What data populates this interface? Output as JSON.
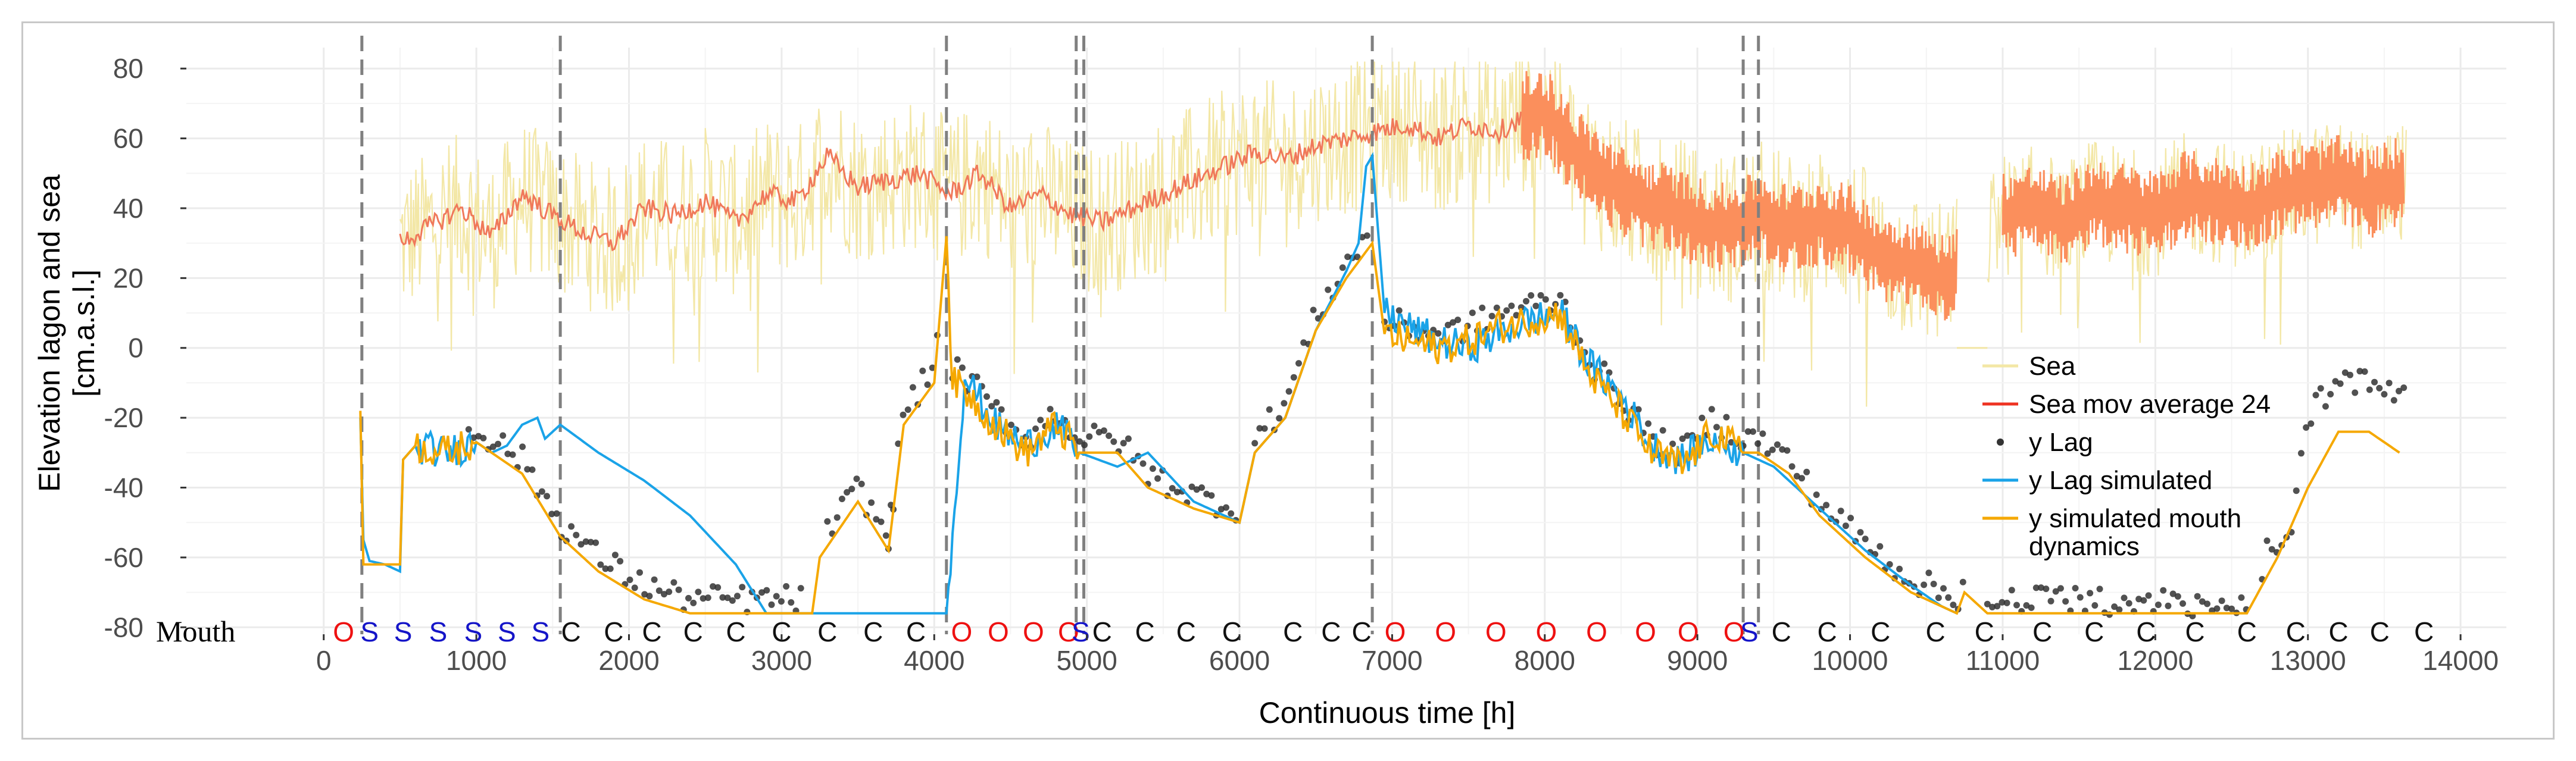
{
  "chart_data": {
    "type": "line",
    "title": "",
    "xlabel": "Continuous time [h]",
    "ylabel": "Elevation lagon and sea",
    "ylabel_units": "[cm.a.s.l.]",
    "xlim": [
      -900,
      14300
    ],
    "ylim": [
      -82,
      86
    ],
    "xticks": [
      0,
      1000,
      2000,
      3000,
      4000,
      5000,
      6000,
      7000,
      8000,
      9000,
      10000,
      11000,
      12000,
      13000,
      14000
    ],
    "yticks": [
      -80,
      -60,
      -40,
      -20,
      0,
      20,
      40,
      60,
      80
    ],
    "grid": true,
    "legend_position": "right",
    "colors": {
      "sea": "#f3e7a6",
      "sea_mov_avg": "#f0795a",
      "sea_mov_avg_dense": "#fb8f5c",
      "y_lag": "#333333",
      "y_lag_sim": "#1aa3e8",
      "y_sim_mouth": "#f5a800",
      "mouth_S": "#1515c8",
      "mouth_O": "#ee1111",
      "mouth_C": "#111111",
      "vline": "#808080"
    },
    "legend": [
      {
        "label": "Sea",
        "kind": "line",
        "color": "#f3e7a6"
      },
      {
        "label": "Sea mov average 24",
        "kind": "line",
        "color": "#ee3322"
      },
      {
        "label": "y Lag",
        "kind": "point",
        "color": "#333333"
      },
      {
        "label": "y Lag simulated",
        "kind": "line",
        "color": "#1aa3e8"
      },
      {
        "label": "y simulated mouth",
        "label2": " dynamics",
        "kind": "line",
        "color": "#f5a800"
      }
    ],
    "vlines": [
      250,
      1550,
      4080,
      4930,
      4980,
      6870,
      9300,
      9400
    ],
    "sea_mov_avg": {
      "x": [
        500,
        700,
        900,
        1100,
        1300,
        1500,
        1700,
        1900,
        2100,
        2300,
        2500,
        2700,
        2900,
        3100,
        3300,
        3500,
        3700,
        3900,
        4100,
        4300,
        4500,
        4700,
        4900,
        5100,
        5300,
        5500,
        5700,
        5900,
        6100,
        6300,
        6500,
        6700,
        6900,
        7100,
        7300,
        7500,
        7700,
        7850
      ],
      "y": [
        30,
        35,
        40,
        32,
        44,
        38,
        33,
        30,
        40,
        38,
        42,
        36,
        44,
        42,
        55,
        46,
        48,
        50,
        44,
        50,
        40,
        44,
        38,
        36,
        40,
        44,
        48,
        52,
        56,
        54,
        58,
        60,
        62,
        64,
        60,
        64,
        62,
        66
      ]
    },
    "sea_mov_avg_dense": {
      "x": [
        7850,
        8000,
        8200,
        8400,
        8600,
        8800,
        9000,
        9200,
        9400,
        9600,
        9800,
        10000,
        10200,
        10400,
        10600,
        10700,
        11000,
        11200,
        11400,
        11600,
        11800,
        12000,
        12200,
        12400,
        12600,
        12800,
        13000,
        13200,
        13400,
        13600
      ],
      "y": [
        66,
        68,
        56,
        48,
        42,
        40,
        36,
        34,
        38,
        34,
        36,
        34,
        26,
        24,
        20,
        22,
        38,
        40,
        36,
        42,
        40,
        38,
        44,
        42,
        40,
        44,
        46,
        48,
        44,
        48
      ]
    },
    "series": [
      {
        "name": "y Lag simulated",
        "x": [
          240,
          260,
          300,
          400,
          500,
          520,
          600,
          800,
          1000,
          1100,
          1200,
          1300,
          1400,
          1450,
          1550,
          1800,
          2100,
          2400,
          2700,
          2900,
          3000,
          4080,
          4200,
          4400,
          4600,
          4800,
          4950,
          5200,
          5400,
          5700,
          6000,
          6100,
          6300,
          6500,
          6700,
          6780,
          6830,
          6870,
          6950,
          7100,
          7300,
          7500,
          7700,
          7900,
          8100,
          8300,
          8500,
          8700,
          8900,
          9100,
          9300,
          9400,
          9500,
          9800,
          10100,
          10400,
          10600,
          10700
        ],
        "y": [
          -20,
          -55,
          -61,
          -62,
          -64,
          -32,
          -28,
          -30,
          -27,
          -30,
          -28,
          -22,
          -20,
          -26,
          -22,
          -30,
          -38,
          -48,
          -62,
          -76,
          -76,
          -76,
          -8,
          -22,
          -28,
          -22,
          -30,
          -34,
          -30,
          -44,
          -50,
          -30,
          -20,
          5,
          22,
          30,
          52,
          55,
          10,
          6,
          2,
          0,
          4,
          8,
          10,
          -5,
          -14,
          -28,
          -32,
          -26,
          -30,
          -32,
          -34,
          -46,
          -58,
          -68,
          -74,
          -76
        ]
      },
      {
        "name": "y simulated mouth dynamics",
        "x": [
          240,
          260,
          300,
          500,
          520,
          600,
          800,
          1000,
          1100,
          1300,
          1550,
          1800,
          2100,
          2400,
          3000,
          3200,
          3250,
          3500,
          3700,
          3800,
          4000,
          4080,
          4120,
          4200,
          4400,
          4600,
          4800,
          4950,
          5200,
          5400,
          5700,
          6000,
          6100,
          6300,
          6500,
          6700,
          6870,
          6950,
          7100,
          7300,
          7500,
          7700,
          7900,
          8100,
          8300,
          8500,
          8700,
          8900,
          9100,
          9300,
          9400,
          9600,
          9800,
          10100,
          10400,
          10600,
          10700,
          10750,
          10900,
          11000,
          11500,
          12000,
          12400,
          12600,
          12800,
          13000,
          13200,
          13400,
          13600
        ],
        "y": [
          -18,
          -62,
          -62,
          -62,
          -32,
          -28,
          -30,
          -27,
          -30,
          -36,
          -54,
          -64,
          -72,
          -76,
          -76,
          -76,
          -60,
          -44,
          -58,
          -22,
          -10,
          32,
          -10,
          -12,
          -22,
          -30,
          -22,
          -30,
          -30,
          -40,
          -46,
          -50,
          -30,
          -20,
          5,
          20,
          30,
          4,
          2,
          0,
          2,
          6,
          8,
          10,
          -8,
          -18,
          -30,
          -34,
          -24,
          -30,
          -30,
          -36,
          -48,
          -60,
          -70,
          -74,
          -76,
          -70,
          -76,
          -76,
          -76,
          -76,
          -76,
          -76,
          -60,
          -40,
          -24,
          -24,
          -30
        ]
      }
    ],
    "mouth_row_label": "Mouth",
    "mouth_states": [
      {
        "x": 130,
        "s": "O"
      },
      {
        "x": 300,
        "s": "S"
      },
      {
        "x": 520,
        "s": "S"
      },
      {
        "x": 750,
        "s": "S"
      },
      {
        "x": 980,
        "s": "S"
      },
      {
        "x": 1200,
        "s": "S"
      },
      {
        "x": 1420,
        "s": "S"
      },
      {
        "x": 1620,
        "s": "C"
      },
      {
        "x": 1900,
        "s": "C"
      },
      {
        "x": 2150,
        "s": "C"
      },
      {
        "x": 2420,
        "s": "C"
      },
      {
        "x": 2700,
        "s": "C"
      },
      {
        "x": 3000,
        "s": "C"
      },
      {
        "x": 3300,
        "s": "C"
      },
      {
        "x": 3600,
        "s": "C"
      },
      {
        "x": 3880,
        "s": "C"
      },
      {
        "x": 4180,
        "s": "O"
      },
      {
        "x": 4420,
        "s": "O"
      },
      {
        "x": 4650,
        "s": "O"
      },
      {
        "x": 4880,
        "s": "O"
      },
      {
        "x": 4960,
        "s": "S"
      },
      {
        "x": 5100,
        "s": "C"
      },
      {
        "x": 5380,
        "s": "C"
      },
      {
        "x": 5650,
        "s": "C"
      },
      {
        "x": 5950,
        "s": "C"
      },
      {
        "x": 6350,
        "s": "C"
      },
      {
        "x": 6600,
        "s": "C"
      },
      {
        "x": 6800,
        "s": "C"
      },
      {
        "x": 7020,
        "s": "O"
      },
      {
        "x": 7350,
        "s": "O"
      },
      {
        "x": 7680,
        "s": "O"
      },
      {
        "x": 8010,
        "s": "O"
      },
      {
        "x": 8340,
        "s": "O"
      },
      {
        "x": 8660,
        "s": "O"
      },
      {
        "x": 8940,
        "s": "O"
      },
      {
        "x": 9240,
        "s": "O"
      },
      {
        "x": 9340,
        "s": "S"
      },
      {
        "x": 9550,
        "s": "C"
      },
      {
        "x": 9850,
        "s": "C"
      },
      {
        "x": 10200,
        "s": "C"
      },
      {
        "x": 10560,
        "s": "C"
      },
      {
        "x": 10880,
        "s": "C"
      },
      {
        "x": 11260,
        "s": "C"
      },
      {
        "x": 11600,
        "s": "C"
      },
      {
        "x": 11940,
        "s": "C"
      },
      {
        "x": 12260,
        "s": "C"
      },
      {
        "x": 12600,
        "s": "C"
      },
      {
        "x": 12920,
        "s": "C"
      },
      {
        "x": 13200,
        "s": "C"
      },
      {
        "x": 13470,
        "s": "C"
      },
      {
        "x": 13760,
        "s": "C"
      }
    ]
  }
}
